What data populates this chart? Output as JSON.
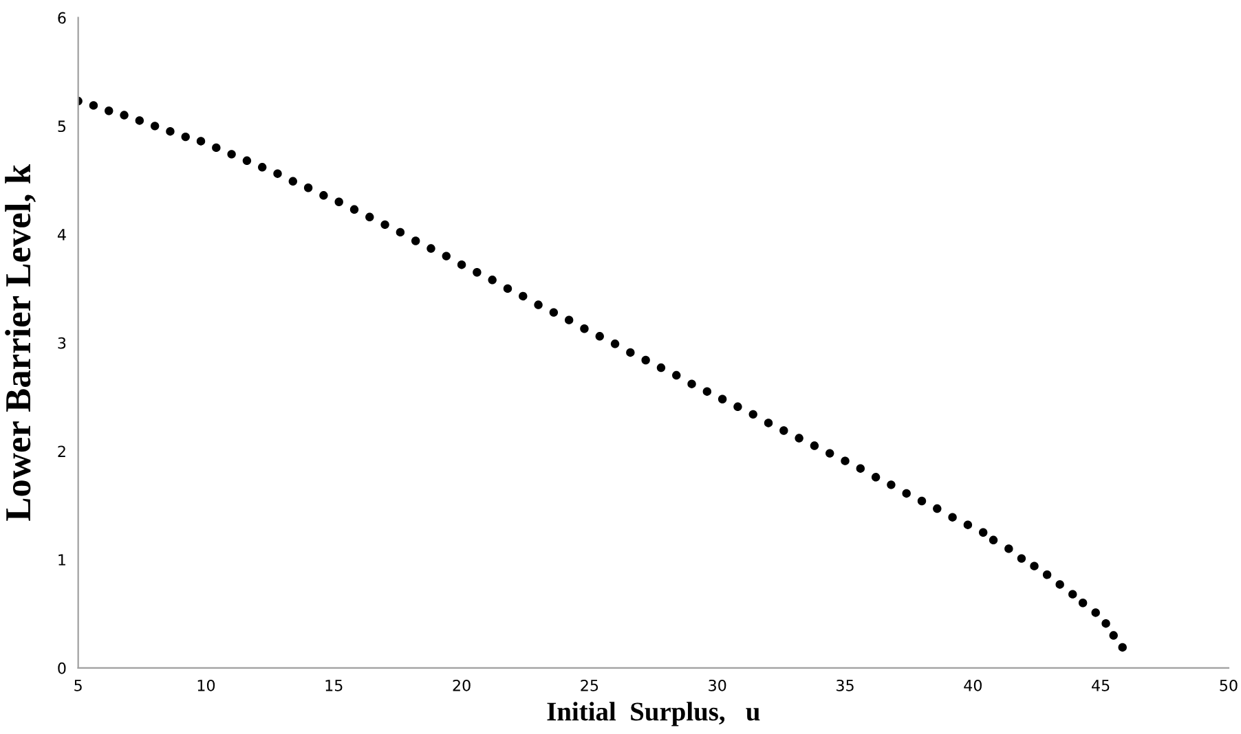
{
  "chart_data": {
    "type": "scatter",
    "xlabel": "Initial  Surplus,   u",
    "ylabel": "Lower Barrier Level, k",
    "xlim": [
      5,
      50
    ],
    "ylim": [
      0,
      6
    ],
    "xticks": [
      5,
      10,
      15,
      20,
      25,
      30,
      35,
      40,
      45,
      50
    ],
    "yticks": [
      0,
      1,
      2,
      3,
      4,
      5,
      6
    ],
    "grid": false,
    "marker": "circle",
    "series": [
      {
        "color": "#000000",
        "x": [
          5.0,
          5.6,
          6.2,
          6.8,
          7.4,
          8.0,
          8.6,
          9.2,
          9.8,
          10.4,
          11.0,
          11.6,
          12.2,
          12.8,
          13.4,
          14.0,
          14.6,
          15.2,
          15.8,
          16.4,
          17.0,
          17.6,
          18.2,
          18.8,
          19.4,
          20.0,
          20.6,
          21.2,
          21.8,
          22.4,
          23.0,
          23.6,
          24.2,
          24.8,
          25.4,
          26.0,
          26.6,
          27.2,
          27.8,
          28.4,
          29.0,
          29.6,
          30.2,
          30.8,
          31.4,
          32.0,
          32.6,
          33.2,
          33.8,
          34.4,
          35.0,
          35.6,
          36.2,
          36.8,
          37.4,
          38.0,
          38.6,
          39.2,
          39.8,
          40.4,
          40.8,
          41.4,
          41.9,
          42.4,
          42.9,
          43.4,
          43.9,
          44.3,
          44.8,
          45.2,
          45.5,
          45.85
        ],
        "values": [
          5.23,
          5.19,
          5.14,
          5.1,
          5.05,
          5.0,
          4.95,
          4.9,
          4.86,
          4.8,
          4.74,
          4.68,
          4.62,
          4.56,
          4.49,
          4.43,
          4.36,
          4.3,
          4.23,
          4.16,
          4.09,
          4.02,
          3.94,
          3.87,
          3.8,
          3.72,
          3.65,
          3.58,
          3.5,
          3.43,
          3.35,
          3.28,
          3.21,
          3.13,
          3.06,
          2.99,
          2.91,
          2.84,
          2.77,
          2.7,
          2.62,
          2.55,
          2.48,
          2.41,
          2.34,
          2.26,
          2.19,
          2.12,
          2.05,
          1.98,
          1.91,
          1.84,
          1.76,
          1.69,
          1.61,
          1.54,
          1.47,
          1.39,
          1.32,
          1.25,
          1.18,
          1.1,
          1.01,
          0.94,
          0.86,
          0.77,
          0.68,
          0.6,
          0.51,
          0.41,
          0.3,
          0.19
        ]
      }
    ]
  }
}
